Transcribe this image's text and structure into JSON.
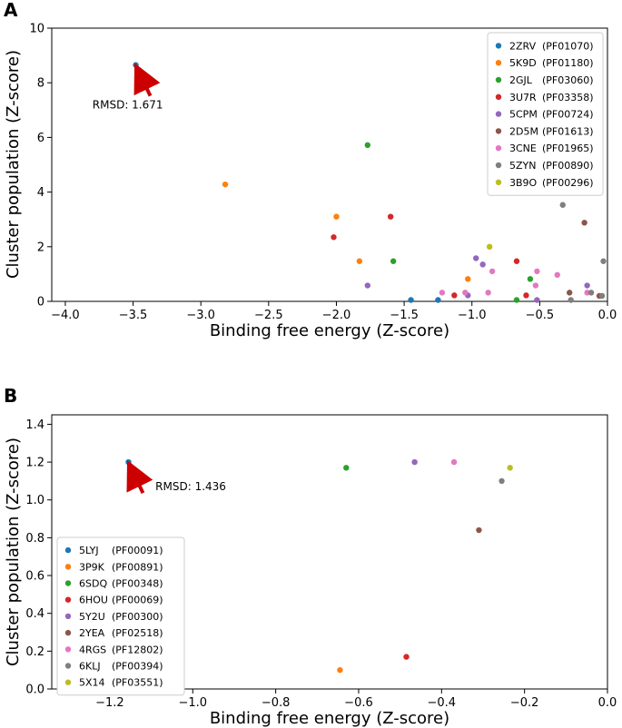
{
  "chart_data": [
    {
      "panel": "A",
      "type": "scatter",
      "title": "",
      "xlabel": "Binding free energy (Z-score)",
      "ylabel": "Cluster population (Z-score)",
      "xlim": [
        -4.1,
        0.0
      ],
      "ylim": [
        0,
        10
      ],
      "xticks": [
        -4.0,
        -3.5,
        -3.0,
        -2.5,
        -2.0,
        -1.5,
        -1.0,
        -0.5,
        0.0
      ],
      "xtick_labels": [
        "−4.0",
        "−3.5",
        "−3.0",
        "−2.5",
        "−2.0",
        "−1.5",
        "−1.0",
        "−0.5",
        "0.0"
      ],
      "yticks": [
        0,
        2,
        4,
        6,
        8,
        10
      ],
      "ytick_labels": [
        "0",
        "2",
        "4",
        "6",
        "8",
        "10"
      ],
      "legend_position": "top-right",
      "annotation": {
        "text": "RMSD: 1.671",
        "point": [
          -3.48,
          8.65
        ],
        "text_at": [
          -3.8,
          7.2
        ]
      },
      "series": [
        {
          "name": "2ZRV",
          "id": "(PF01070)",
          "color": "#1f77b4",
          "points": [
            [
              -3.48,
              8.65
            ],
            [
              -1.45,
              0.05
            ],
            [
              -1.25,
              0.05
            ]
          ]
        },
        {
          "name": "5K9D",
          "id": "(PF01180)",
          "color": "#ff7f0e",
          "points": [
            [
              -2.82,
              4.28
            ],
            [
              -2.0,
              3.1
            ],
            [
              -1.83,
              1.47
            ],
            [
              -1.03,
              0.82
            ]
          ]
        },
        {
          "name": "2GJL",
          "id": "(PF03060)",
          "color": "#2ca02c",
          "points": [
            [
              -1.77,
              5.72
            ],
            [
              -1.58,
              1.47
            ],
            [
              -0.57,
              0.82
            ],
            [
              -0.67,
              0.05
            ]
          ]
        },
        {
          "name": "3U7R",
          "id": "(PF03358)",
          "color": "#d62728",
          "points": [
            [
              -2.02,
              2.35
            ],
            [
              -1.6,
              3.1
            ],
            [
              -1.13,
              0.22
            ],
            [
              -0.67,
              1.47
            ],
            [
              -0.6,
              0.22
            ]
          ]
        },
        {
          "name": "5CPM",
          "id": "(PF00724)",
          "color": "#9467bd",
          "points": [
            [
              -1.77,
              0.58
            ],
            [
              -0.97,
              1.58
            ],
            [
              -0.92,
              1.35
            ],
            [
              -1.03,
              0.22
            ],
            [
              -0.52,
              0.05
            ],
            [
              -0.15,
              0.58
            ]
          ]
        },
        {
          "name": "2D5M",
          "id": "(PF01613)",
          "color": "#8c564b",
          "points": [
            [
              -0.17,
              2.88
            ],
            [
              -0.28,
              0.32
            ],
            [
              -0.06,
              0.2
            ]
          ]
        },
        {
          "name": "3CNE",
          "id": "(PF01965)",
          "color": "#e377c2",
          "points": [
            [
              -0.52,
              1.1
            ],
            [
              -0.37,
              0.97
            ],
            [
              -0.85,
              1.1
            ],
            [
              -0.88,
              0.32
            ],
            [
              -0.53,
              0.58
            ],
            [
              -0.15,
              0.32
            ],
            [
              -1.22,
              0.32
            ],
            [
              -1.05,
              0.32
            ]
          ]
        },
        {
          "name": "5ZYN",
          "id": "(PF00890)",
          "color": "#7f7f7f",
          "points": [
            [
              -0.33,
              3.53
            ],
            [
              -0.03,
              1.47
            ],
            [
              -0.27,
              0.05
            ],
            [
              -0.12,
              0.32
            ],
            [
              -0.04,
              0.2
            ]
          ]
        },
        {
          "name": "3B9O",
          "id": "(PF00296)",
          "color": "#bcbd22",
          "points": [
            [
              -0.87,
              2.0
            ]
          ]
        }
      ]
    },
    {
      "panel": "B",
      "type": "scatter",
      "title": "",
      "xlabel": "Binding free energy (Z-score)",
      "ylabel": "Cluster population (Z-score)",
      "xlim": [
        -1.34,
        0.0
      ],
      "ylim": [
        0,
        1.45
      ],
      "xticks": [
        -1.2,
        -1.0,
        -0.8,
        -0.6,
        -0.4,
        -0.2,
        0.0
      ],
      "xtick_labels": [
        "−1.2",
        "−1.0",
        "−0.8",
        "−0.6",
        "−0.4",
        "−0.2",
        "0.0"
      ],
      "yticks": [
        0.0,
        0.2,
        0.4,
        0.6,
        0.8,
        1.0,
        1.2,
        1.4
      ],
      "ytick_labels": [
        "0.0",
        "0.2",
        "0.4",
        "0.6",
        "0.8",
        "1.0",
        "1.2",
        "1.4"
      ],
      "legend_position": "lower-left",
      "annotation": {
        "text": "RMSD: 1.436",
        "point": [
          -1.155,
          1.2
        ],
        "text_at": [
          -1.09,
          1.07
        ]
      },
      "series": [
        {
          "name": "5LYJ",
          "id": "(PF00091)",
          "color": "#1f77b4",
          "points": [
            [
              -1.155,
              1.2
            ]
          ]
        },
        {
          "name": "3P9K",
          "id": "(PF00891)",
          "color": "#ff7f0e",
          "points": [
            [
              -0.645,
              0.1
            ]
          ]
        },
        {
          "name": "6SDQ",
          "id": "(PF00348)",
          "color": "#2ca02c",
          "points": [
            [
              -0.63,
              1.17
            ]
          ]
        },
        {
          "name": "6HOU",
          "id": "(PF00069)",
          "color": "#d62728",
          "points": [
            [
              -0.485,
              0.17
            ]
          ]
        },
        {
          "name": "5Y2U",
          "id": "(PF00300)",
          "color": "#9467bd",
          "points": [
            [
              -0.465,
              1.2
            ]
          ]
        },
        {
          "name": "2YEA",
          "id": "(PF02518)",
          "color": "#8c564b",
          "points": [
            [
              -0.31,
              0.84
            ]
          ]
        },
        {
          "name": "4RGS",
          "id": "(PF12802)",
          "color": "#e377c2",
          "points": [
            [
              -0.37,
              1.2
            ]
          ]
        },
        {
          "name": "6KLJ",
          "id": "(PF00394)",
          "color": "#7f7f7f",
          "points": [
            [
              -0.255,
              1.1
            ]
          ]
        },
        {
          "name": "5X14",
          "id": "(PF03551)",
          "color": "#bcbd22",
          "points": [
            [
              -0.235,
              1.17
            ]
          ]
        }
      ]
    }
  ]
}
